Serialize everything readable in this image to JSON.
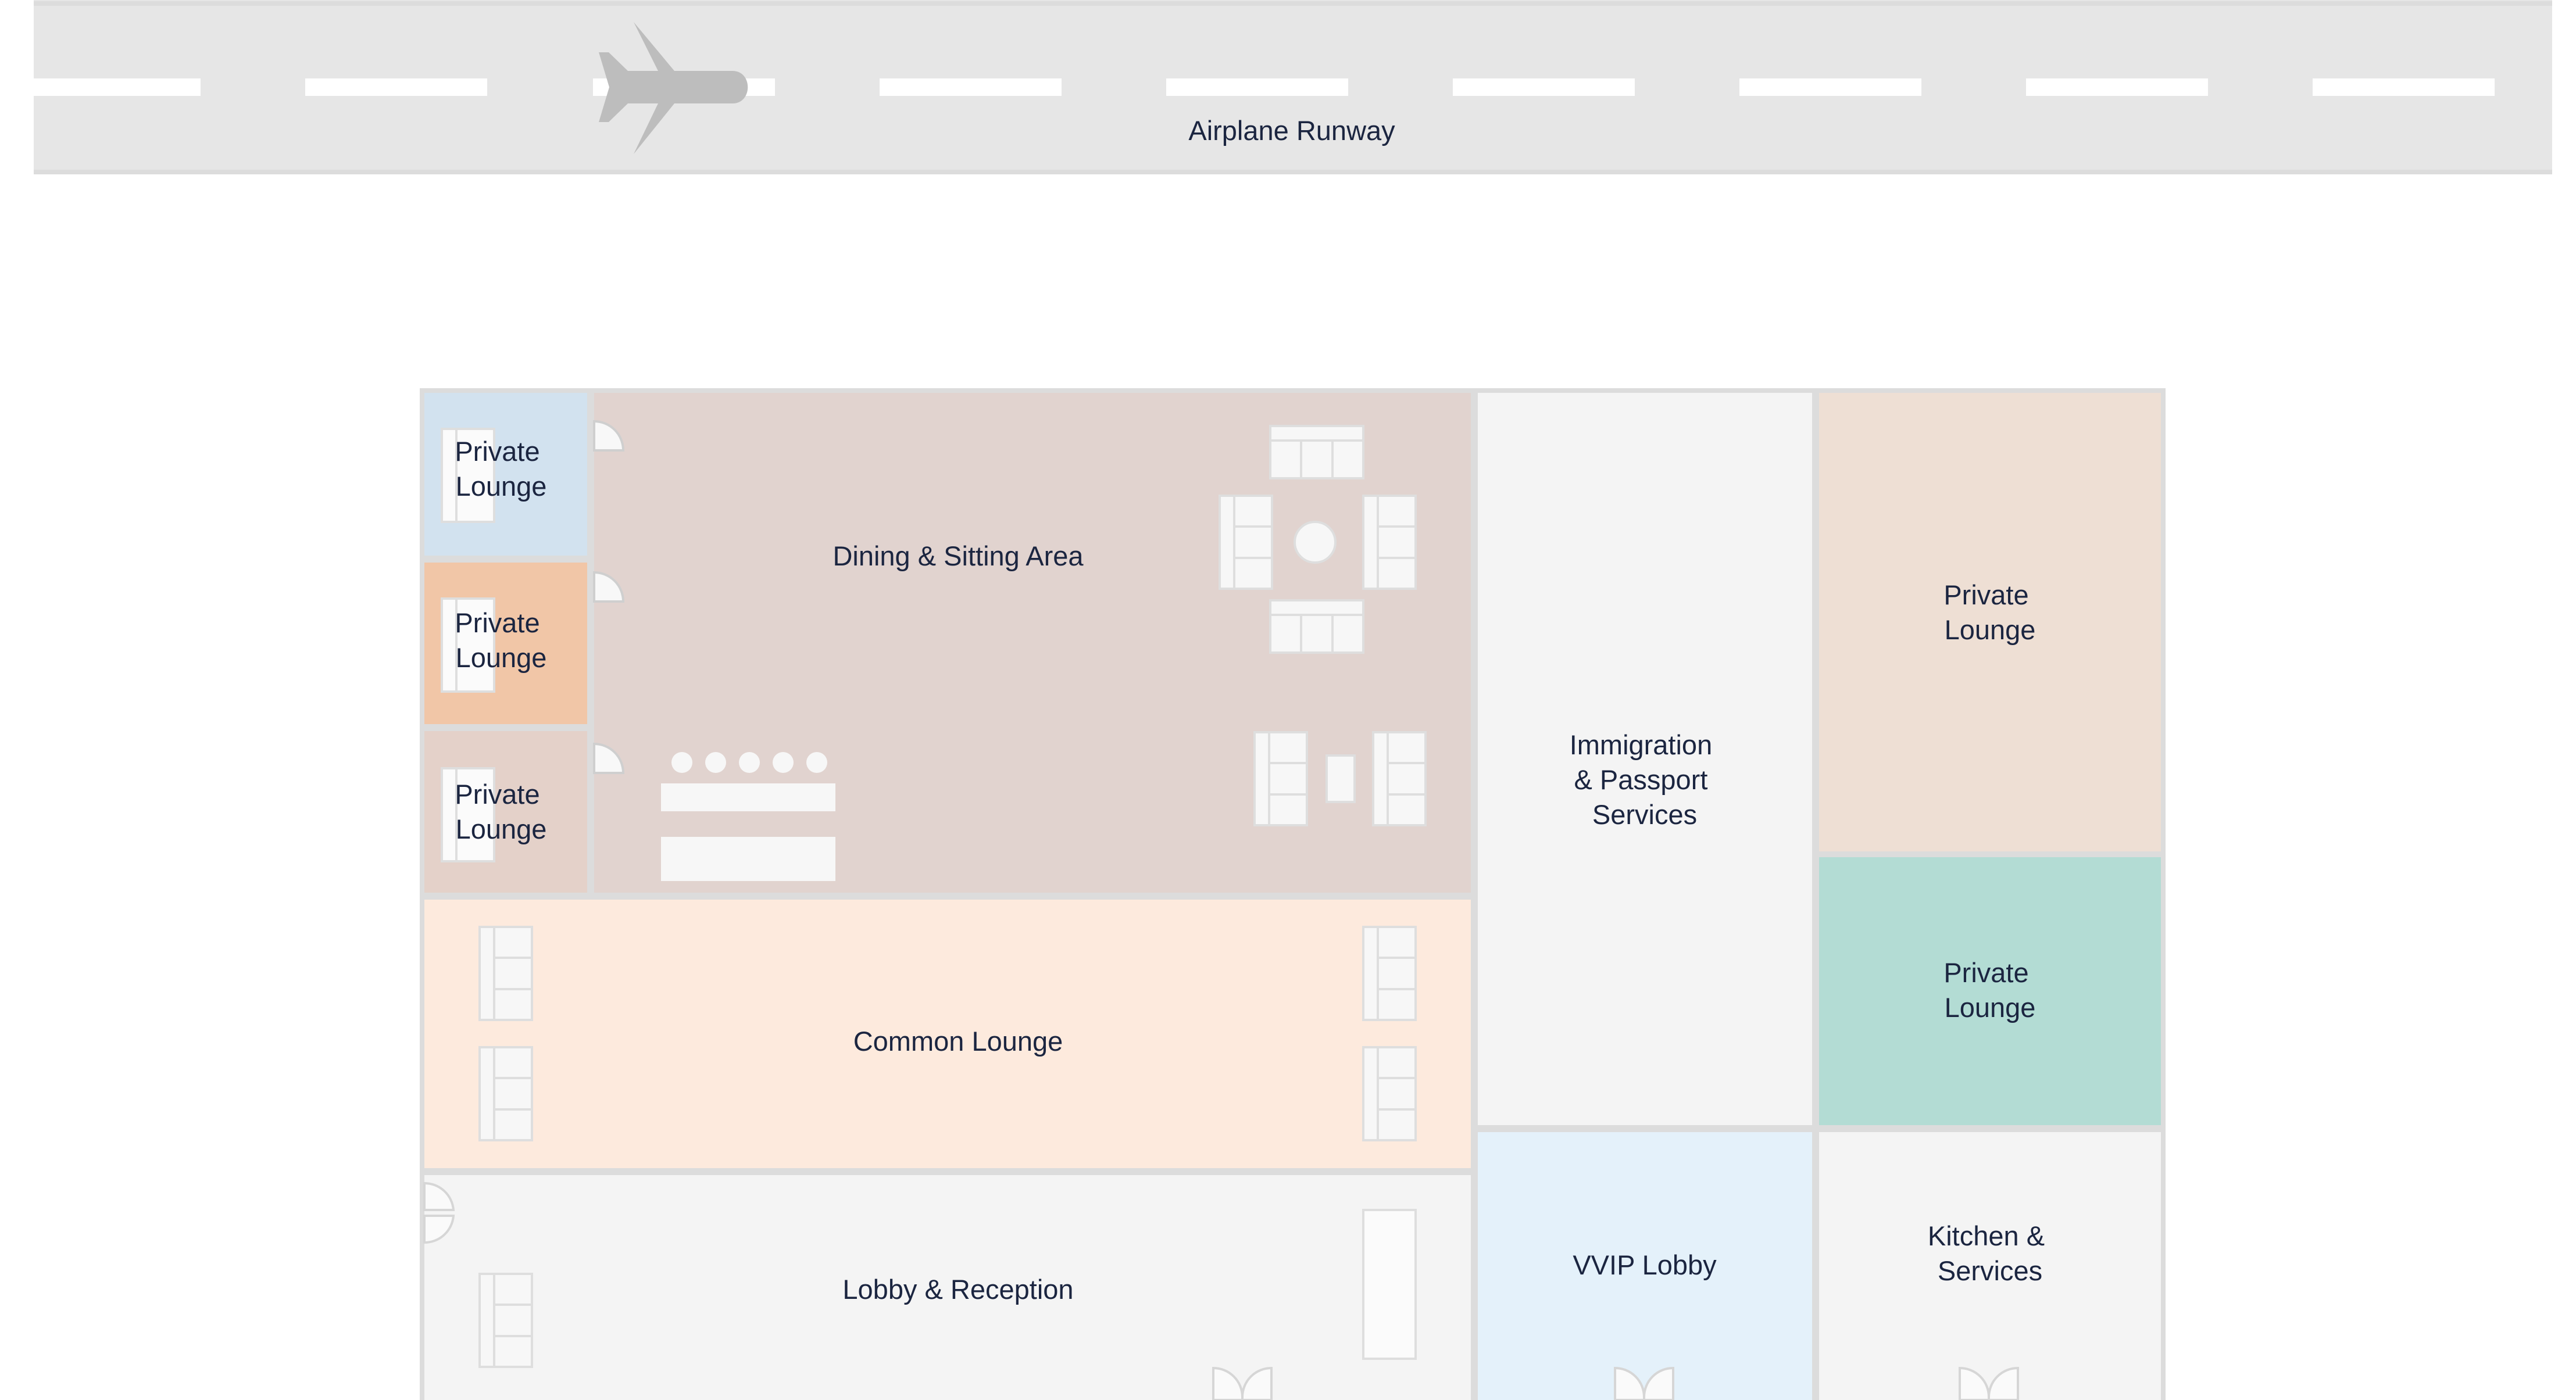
{
  "runway": {
    "label": "Airplane Runway",
    "icon": "airplane-icon"
  },
  "rooms": {
    "private_lounge_1": [
      "Private",
      "Lounge"
    ],
    "private_lounge_2": [
      "Private",
      "Lounge"
    ],
    "private_lounge_3": [
      "Private",
      "Lounge"
    ],
    "dining": "Dining & Sitting Area",
    "common_lounge": "Common Lounge",
    "lobby": "Lobby & Reception",
    "immigration": [
      "Immigration",
      "& Passport",
      "Services"
    ],
    "private_lounge_4": [
      "Private",
      "Lounge"
    ],
    "private_lounge_5": [
      "Private",
      "Lounge"
    ],
    "vvip": "VVIP Lobby",
    "kitchen": [
      "Kitchen &",
      "Services"
    ]
  },
  "colors": {
    "runway": "#e6e6e6",
    "airplane": "#bdbdbd",
    "wall": "#dcdcdc",
    "private_lounge_blue": "#d2e2ef",
    "private_lounge_orange": "#f1c6a7",
    "private_lounge_brown": "#e4d1c9",
    "dining": "#e1d3cf",
    "common_lounge": "#fdeadd",
    "neutral_room": "#f4f4f4",
    "private_lounge_beige": "#eedfd4",
    "private_lounge_teal": "#b3dcd4",
    "vvip": "#e4f1fa",
    "text": "#1b2540"
  }
}
